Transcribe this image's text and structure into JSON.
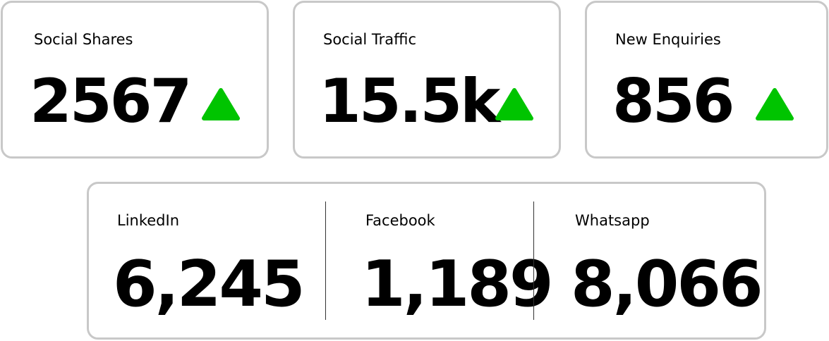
{
  "top_cards": [
    {
      "label": "Social Shares",
      "value": "2567"
    },
    {
      "label": "Social Traffic",
      "value": "15.5k"
    },
    {
      "label": "New Enquiries",
      "value": "856"
    }
  ],
  "bottom_card": {
    "items": [
      {
        "label": "LinkedIn",
        "value": "6,245"
      },
      {
        "label": "Facebook",
        "value": "1,189"
      },
      {
        "label": "Whatsapp",
        "value": "8,066"
      }
    ]
  }
}
